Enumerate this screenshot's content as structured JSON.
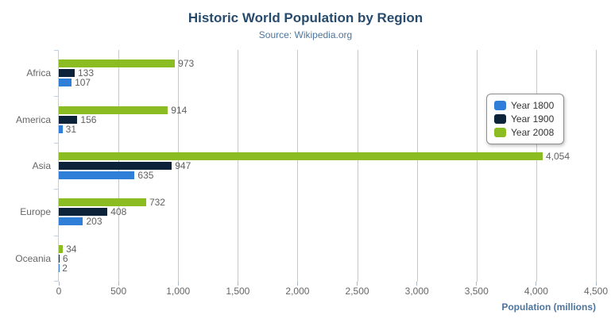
{
  "chart": {
    "title": "Historic World Population by Region",
    "subtitle": "Source: Wikipedia.org",
    "x_axis_title": "Population (millions)",
    "menu_icon": "hamburger-icon"
  },
  "colors": {
    "title": "#274b6d",
    "subtitle": "#4d759e",
    "axis_title": "#4d759e",
    "axis_labels": "#666666",
    "value_labels": "#606060",
    "grid_line": "#c9c9c9",
    "category_axis_line": "#c0d0e0",
    "series_year_1800": "#2f7ed8",
    "series_year_1900": "#0d233a",
    "series_year_2008": "#8bbc21"
  },
  "legend": {
    "items": [
      {
        "label": "Year 1800",
        "color": "#2f7ed8"
      },
      {
        "label": "Year 1900",
        "color": "#0d233a"
      },
      {
        "label": "Year 2008",
        "color": "#8bbc21"
      }
    ]
  },
  "chart_data": {
    "type": "bar",
    "orientation": "horizontal",
    "title": "Historic World Population by Region",
    "subtitle": "Source: Wikipedia.org",
    "categories": [
      "Africa",
      "America",
      "Asia",
      "Europe",
      "Oceania"
    ],
    "series": [
      {
        "name": "Year 1800",
        "color": "#2f7ed8",
        "values": [
          107,
          31,
          635,
          203,
          2
        ],
        "labels": [
          "107",
          "31",
          "635",
          "203",
          "2"
        ]
      },
      {
        "name": "Year 1900",
        "color": "#0d233a",
        "values": [
          133,
          156,
          947,
          408,
          6
        ],
        "labels": [
          "133",
          "156",
          "947",
          "408",
          "6"
        ]
      },
      {
        "name": "Year 2008",
        "color": "#8bbc21",
        "values": [
          973,
          914,
          4054,
          732,
          34
        ],
        "labels": [
          "973",
          "914",
          "4,054",
          "732",
          "34"
        ]
      }
    ],
    "bar_order_top_to_bottom": [
      "Year 2008",
      "Year 1900",
      "Year 1800"
    ],
    "xlabel": "Population (millions)",
    "xlim": [
      0,
      4500
    ],
    "x_ticks": [
      0,
      500,
      1000,
      1500,
      2000,
      2500,
      3000,
      3500,
      4000,
      4500
    ],
    "x_tick_labels": [
      "0",
      "500",
      "1,000",
      "1,500",
      "2,000",
      "2,500",
      "3,000",
      "3,500",
      "4,000",
      "4,500"
    ],
    "grid": true,
    "legend_position": "right"
  }
}
